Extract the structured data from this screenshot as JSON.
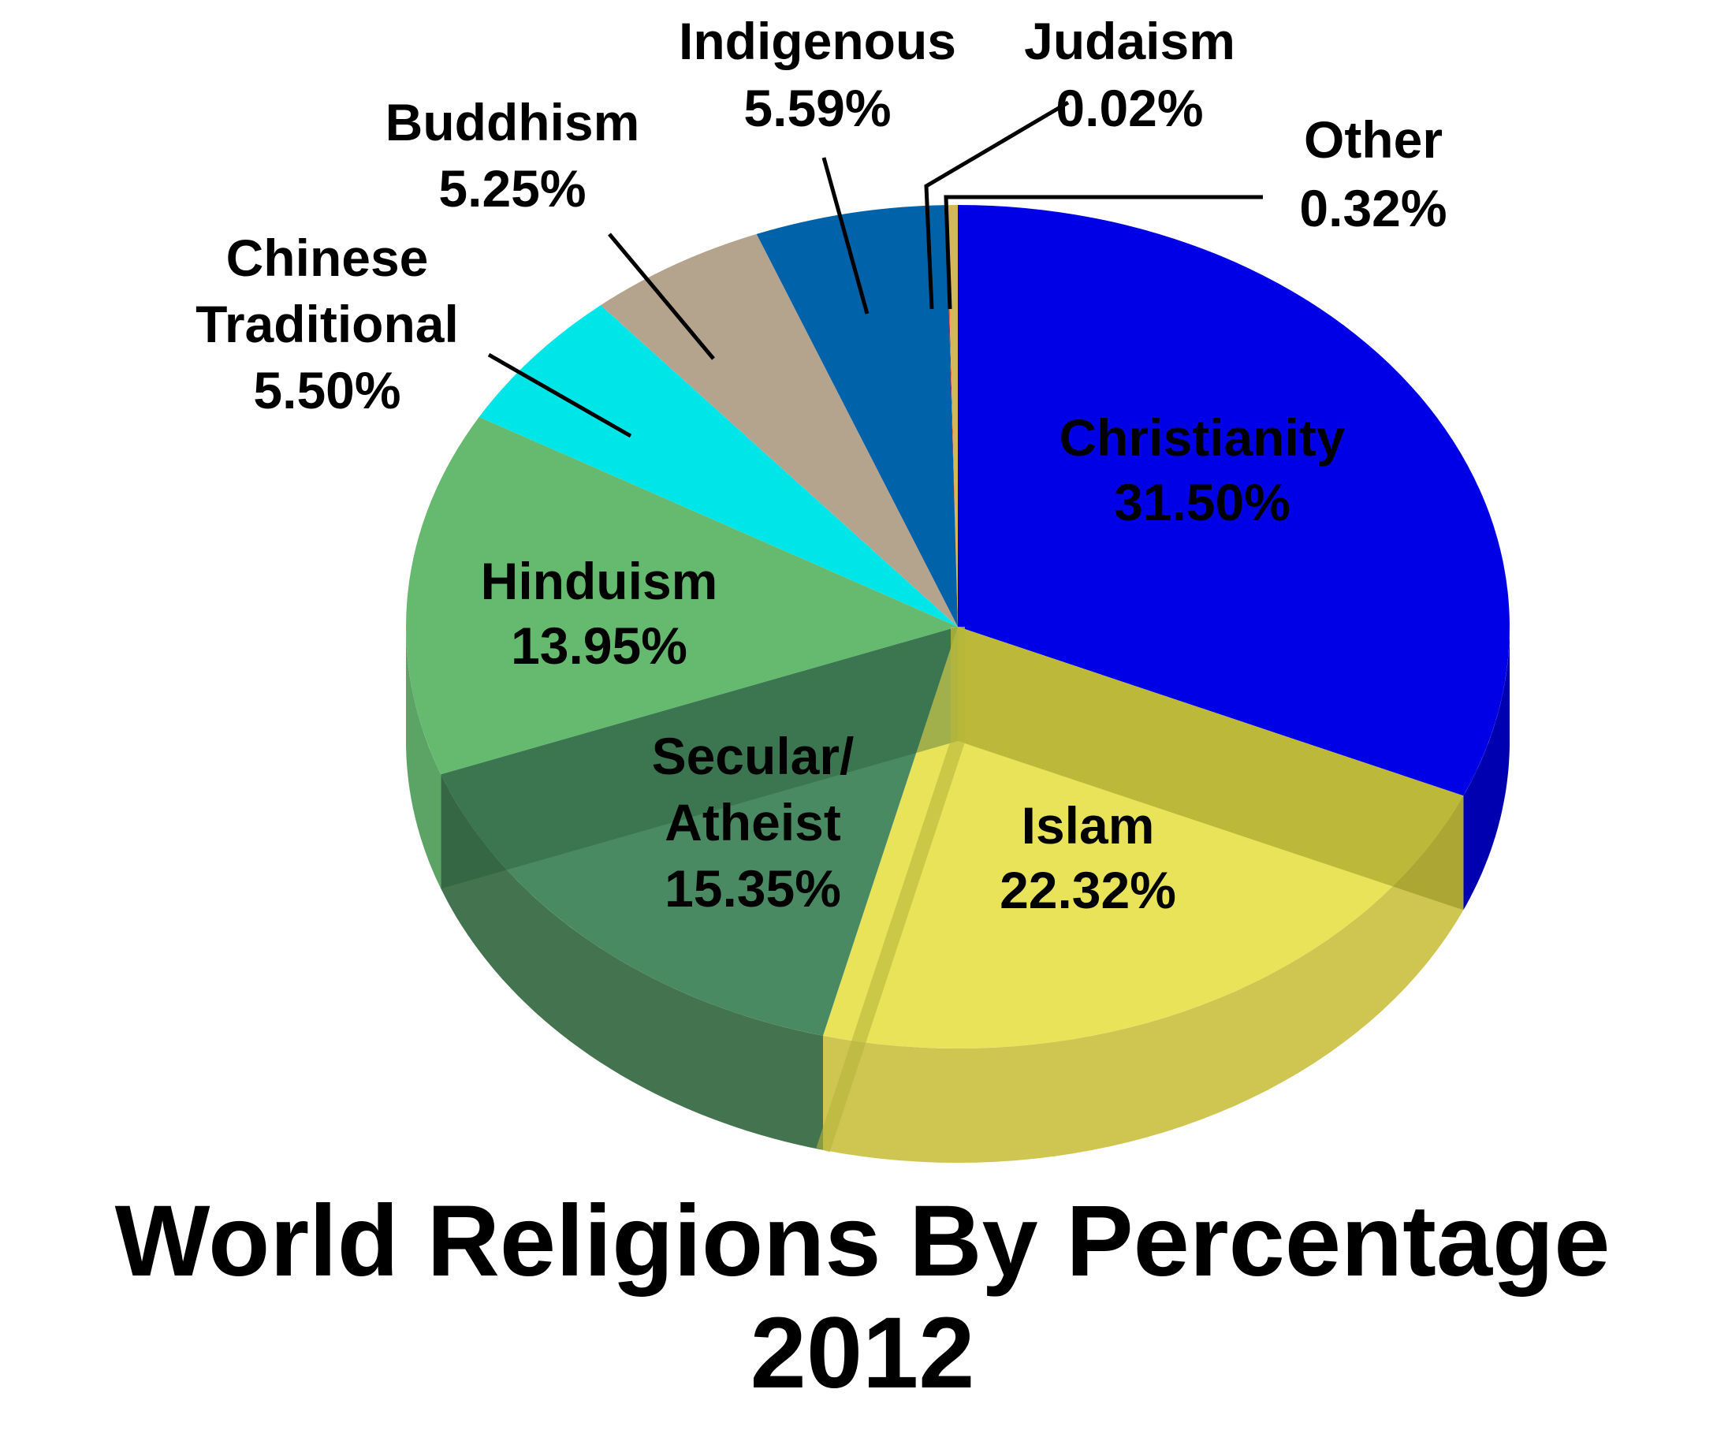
{
  "chart_data": {
    "type": "pie",
    "title": "World Religions By Percentage",
    "subtitle": "2012",
    "slices": [
      {
        "name": "Christianity",
        "label_lines": [
          "Christianity"
        ],
        "value": 31.5,
        "pct_text": "31.50%",
        "color": "#0000e6",
        "side_color": "#0000b0"
      },
      {
        "name": "Islam",
        "label_lines": [
          "Islam"
        ],
        "value": 22.32,
        "pct_text": "22.32%",
        "color": "#e9e35a",
        "side_color": "#cfc652"
      },
      {
        "name": "Secular/Atheist",
        "label_lines": [
          "Secular/",
          "Atheist"
        ],
        "value": 15.35,
        "pct_text": "15.35%",
        "color": "#4a8a63",
        "side_color": "#43734f"
      },
      {
        "name": "Hinduism",
        "label_lines": [
          "Hinduism"
        ],
        "value": 13.95,
        "pct_text": "13.95%",
        "color": "#65ba6f",
        "side_color": "#5ba466"
      },
      {
        "name": "Chinese Traditional",
        "label_lines": [
          "Chinese",
          "Traditional"
        ],
        "value": 5.5,
        "pct_text": "5.50%",
        "color": "#00e6e8",
        "side_color": "#00b8ba"
      },
      {
        "name": "Buddhism",
        "label_lines": [
          "Buddhism"
        ],
        "value": 5.25,
        "pct_text": "5.25%",
        "color": "#b5a48d",
        "side_color": "#968670"
      },
      {
        "name": "Indigenous",
        "label_lines": [
          "Indigenous"
        ],
        "value": 5.59,
        "pct_text": "5.59%",
        "color": "#0063aa",
        "side_color": "#004e88"
      },
      {
        "name": "Judaism",
        "label_lines": [
          "Judaism"
        ],
        "value": 0.02,
        "pct_text": "0.02%",
        "color": "#ff0000",
        "side_color": "#c00000"
      },
      {
        "name": "Other",
        "label_lines": [
          "Other"
        ],
        "value": 0.32,
        "pct_text": "0.32%",
        "color": "#d4b75a",
        "side_color": "#b09648"
      }
    ]
  }
}
